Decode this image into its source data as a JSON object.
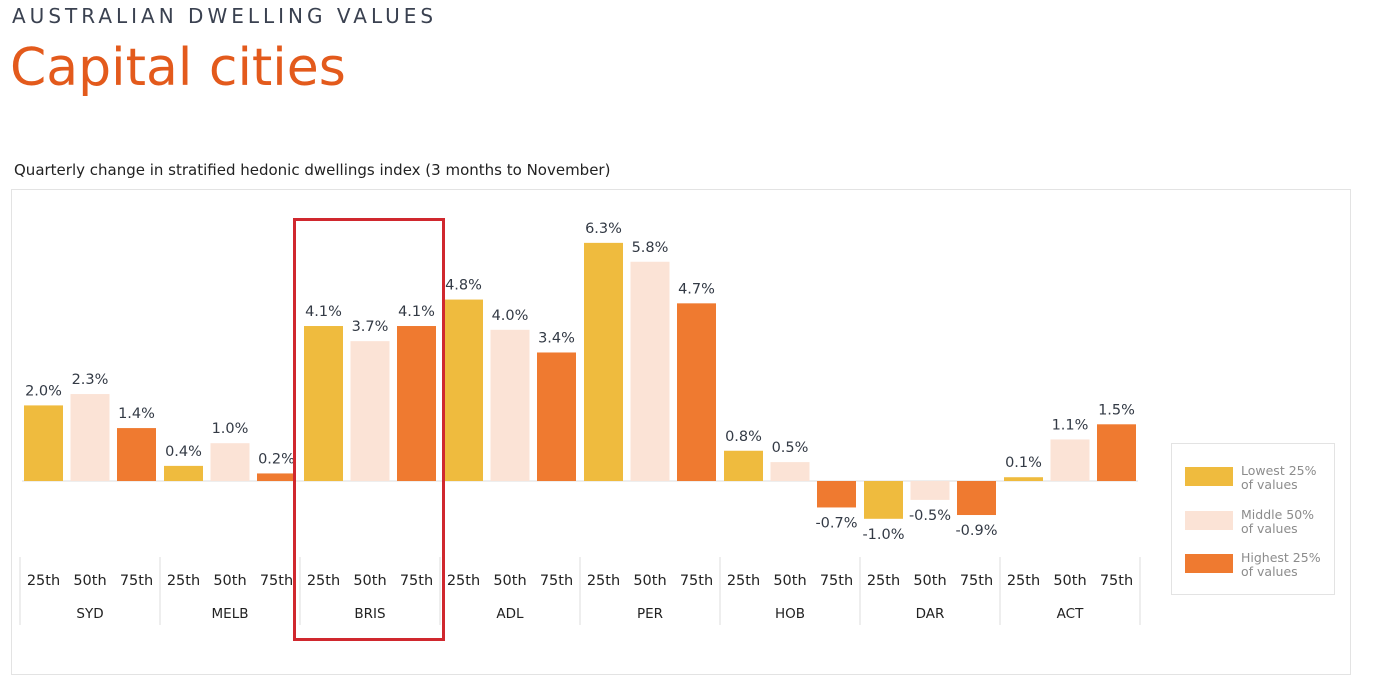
{
  "header": {
    "eyebrow": "AUSTRALIAN DWELLING VALUES",
    "headline": "Capital cities"
  },
  "legend": {
    "items": [
      {
        "line1": "Lowest 25%",
        "line2": "of values",
        "color": "#efbb3e"
      },
      {
        "line1": "Middle 50%",
        "line2": "of values",
        "color": "#fbe3d6"
      },
      {
        "line1": "Highest 25%",
        "line2": "of values",
        "color": "#ef7a30"
      }
    ]
  },
  "chart_data": {
    "type": "bar",
    "title": "Quarterly change in stratified hedonic dwellings index (3 months to November)",
    "groups": [
      "SYD",
      "MELB",
      "BRIS",
      "ADL",
      "PER",
      "HOB",
      "DAR",
      "ACT"
    ],
    "sub_categories": [
      "25th",
      "50th",
      "75th"
    ],
    "series": [
      {
        "name": "Lowest 25% of values",
        "color": "#efbb3e",
        "values": [
          2.0,
          0.4,
          4.1,
          4.8,
          6.3,
          0.8,
          -1.0,
          0.1
        ]
      },
      {
        "name": "Middle 50% of values",
        "color": "#fbe3d6",
        "values": [
          2.3,
          1.0,
          3.7,
          4.0,
          5.8,
          0.5,
          -0.5,
          1.1
        ]
      },
      {
        "name": "Highest 25% of values",
        "color": "#ef7a30",
        "values": [
          1.4,
          0.2,
          4.1,
          3.4,
          4.7,
          -0.7,
          -0.9,
          1.5
        ]
      }
    ],
    "value_format": "0.0%",
    "ylim": [
      -1.2,
      6.6
    ],
    "grid": false,
    "legend_position": "right",
    "highlighted_group": "BRIS"
  }
}
